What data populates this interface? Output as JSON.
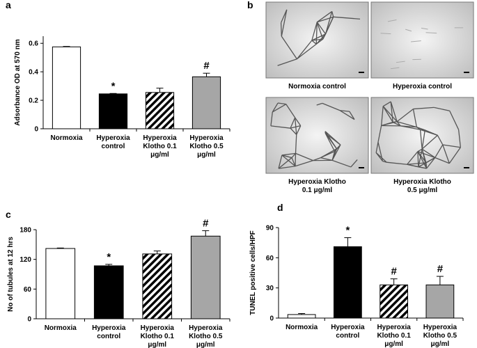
{
  "chart_data": [
    {
      "type": "bar",
      "panel_label": "a",
      "ylabel": "Adsorbance OD at 570 nm",
      "categories": [
        "Normoxia",
        "Hyperoxia\ncontrol",
        "Hyperoxia\nKlotho 0.1\nμg/ml",
        "Hyperoxia\nKlotho 0.5\nμg/ml"
      ],
      "values": [
        0.575,
        0.245,
        0.255,
        0.365
      ],
      "errors": [
        0.003,
        0.003,
        0.03,
        0.025
      ],
      "annotations": [
        null,
        "*",
        null,
        "#"
      ],
      "colors": [
        "#ffffff",
        "#000000",
        "#ffffff",
        "#a6a6a6"
      ],
      "hatch": [
        false,
        false,
        true,
        false
      ],
      "ylim": [
        0,
        0.65
      ],
      "yticks": [
        0,
        0.2,
        0.4,
        0.6
      ]
    },
    {
      "type": "bar",
      "panel_label": "c",
      "ylabel": "No of tubules at 12 hrs",
      "categories": [
        "Normoxia",
        "Hyperoxia\ncontrol",
        "Hyperoxia\nKlotho 0.1\nμg/ml",
        "Hyperoxia\nKlotho 0.5\nμg/ml"
      ],
      "values": [
        142,
        107,
        131,
        167
      ],
      "errors": [
        1,
        3,
        6,
        11
      ],
      "annotations": [
        null,
        "*",
        null,
        "#"
      ],
      "colors": [
        "#ffffff",
        "#000000",
        "#ffffff",
        "#a6a6a6"
      ],
      "hatch": [
        false,
        false,
        true,
        false
      ],
      "ylim": [
        0,
        180
      ],
      "yticks": [
        0,
        60,
        120,
        180
      ]
    },
    {
      "type": "bar",
      "panel_label": "d",
      "ylabel": "TUNEL positive cells/HPF",
      "categories": [
        "Normoxia",
        "Hyperoxia\ncontrol",
        "Hyperoxia\nKlotho 0.1\nμg/ml",
        "Hyperoxia\nKlotho 0.5\nμg/ml"
      ],
      "values": [
        3.5,
        71,
        33,
        33
      ],
      "errors": [
        1,
        9,
        6,
        8.5
      ],
      "annotations": [
        null,
        "*",
        "#",
        "#"
      ],
      "colors": [
        "#ffffff",
        "#000000",
        "#ffffff",
        "#a6a6a6"
      ],
      "hatch": [
        false,
        false,
        true,
        false
      ],
      "ylim": [
        0,
        90
      ],
      "yticks": [
        0,
        30,
        60,
        90
      ]
    }
  ],
  "images": {
    "panel_label": "b",
    "captions": [
      "Normoxia control",
      "Hyperoxia control",
      "Hyperoxia Klotho\n0.1 μg/ml",
      "Hyperoxia Klotho\n0.5 μg/ml"
    ]
  }
}
